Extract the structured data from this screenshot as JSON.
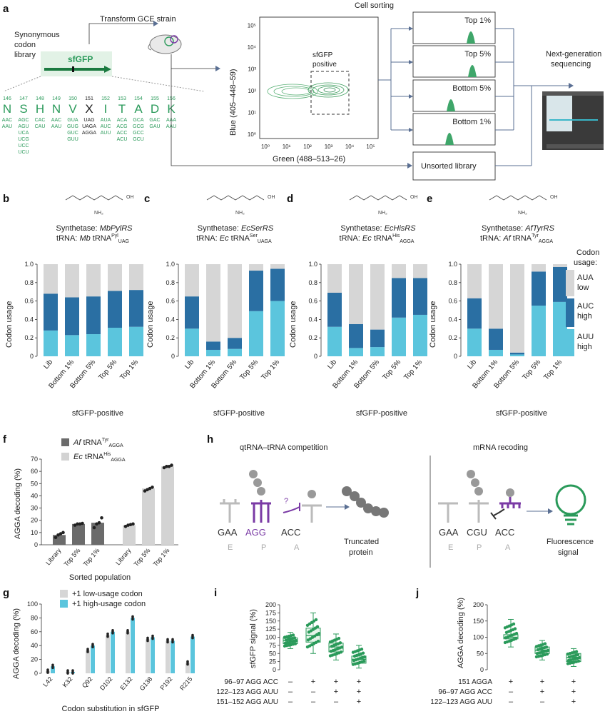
{
  "panel_a": {
    "label": "a",
    "transform": "Transform GCE strain",
    "cell_sorting": "Cell sorting",
    "library": [
      "Synonymous",
      "codon",
      "library"
    ],
    "gene": "sfGFP",
    "sfgfp_positive": [
      "sfGFP",
      "positive"
    ],
    "y_axis": "Blue (405–448–59)",
    "x_axis": "Green (488–513–26)",
    "x_ticks": [
      "10⁰",
      "10¹",
      "10²",
      "10³",
      "10⁴",
      "10⁵"
    ],
    "y_ticks": [
      "10⁰",
      "10¹",
      "10²",
      "10³",
      "10⁴",
      "10⁵"
    ],
    "gates": [
      "Top 1%",
      "Top 5%",
      "Bottom 5%",
      "Bottom 1%"
    ],
    "unsorted": "Unsorted library",
    "ngs": [
      "Next-generation",
      "sequencing"
    ],
    "codons": [
      {
        "pos": "146",
        "aa": "N",
        "c": [
          "AAC",
          "AAU"
        ]
      },
      {
        "pos": "147",
        "aa": "S",
        "c": [
          "AGC",
          "AGU",
          "UCA",
          "UCG",
          "UCC",
          "UCU"
        ]
      },
      {
        "pos": "148",
        "aa": "H",
        "c": [
          "CAC",
          "CAU"
        ]
      },
      {
        "pos": "149",
        "aa": "N",
        "c": [
          "AAC",
          "AAU"
        ]
      },
      {
        "pos": "150",
        "aa": "V",
        "c": [
          "GUA",
          "GUG",
          "GUC",
          "GUU"
        ]
      },
      {
        "pos": "151",
        "aa": "X",
        "c": [
          "UAG",
          "UAGA",
          "AGGA"
        ]
      },
      {
        "pos": "152",
        "aa": "I",
        "c": [
          "AUA",
          "AUC",
          "AUU"
        ]
      },
      {
        "pos": "153",
        "aa": "T",
        "c": [
          "ACA",
          "ACG",
          "ACC",
          "ACU"
        ]
      },
      {
        "pos": "154",
        "aa": "A",
        "c": [
          "GCA",
          "GCG",
          "GCC",
          "GCU"
        ]
      },
      {
        "pos": "155",
        "aa": "D",
        "c": [
          "GAC",
          "GAU"
        ]
      },
      {
        "pos": "156",
        "aa": "K",
        "c": [
          "AAA",
          "AAU"
        ]
      }
    ]
  },
  "stack_panels": [
    {
      "label": "b",
      "syn_prefix": "Synthetase: ",
      "syn": "MbPylRS",
      "trna_prefix": "tRNA: ",
      "trna_sp": "Mb",
      "trna_name": " tRNA",
      "sup": "Pyl",
      "sub": "UAG"
    },
    {
      "label": "c",
      "syn_prefix": "Synthetase: ",
      "syn": "EcSerRS",
      "trna_prefix": "tRNA: ",
      "trna_sp": "Ec",
      "trna_name": " tRNA",
      "sup": "Ser",
      "sub": "UAGA"
    },
    {
      "label": "d",
      "syn_prefix": "Synthetase: ",
      "syn": "EcHisRS",
      "trna_prefix": "tRNA: ",
      "trna_sp": "Ec",
      "trna_name": " tRNA",
      "sup": "His",
      "sub": "AGGA"
    },
    {
      "label": "e",
      "syn_prefix": "Synthetase: ",
      "syn": "AfTyrRS",
      "trna_prefix": "tRNA: ",
      "trna_sp": "Af",
      "trna_name": " tRNA",
      "sup": "Tyr",
      "sub": "AGGA"
    }
  ],
  "stack_common": {
    "ylabel": "Codon usage",
    "yticks": [
      "0",
      "0.2",
      "0.4",
      "0.6",
      "0.8",
      "1.0"
    ],
    "categories": [
      "Lib",
      "Bottom 1%",
      "Bottom 5%",
      "Top 5%",
      "Top 1%"
    ],
    "xlabel": "sfGFP-positive",
    "legend_title": "Codon usage",
    "legend": [
      [
        "AUA",
        "low"
      ],
      [
        "AUC",
        "high"
      ],
      [
        "AUU",
        "high"
      ]
    ]
  },
  "panel_f": {
    "label": "f",
    "ylabel": "AGGA decoding (%)",
    "yticks": [
      "0",
      "10",
      "20",
      "30",
      "40",
      "50",
      "60",
      "70"
    ],
    "xlabel": "Sorted population",
    "categories": [
      "Library",
      "Top 5%",
      "Top 1%"
    ],
    "legend_sp": [
      "Af",
      "Ec"
    ],
    "legend_name": [
      " tRNA",
      " tRNA"
    ],
    "legend_sup": [
      "Tyr",
      "His"
    ],
    "legend_sub": [
      "AGGA",
      "AGGA"
    ]
  },
  "panel_g": {
    "label": "g",
    "ylabel": "AGGA decoding (%)",
    "yticks": [
      "0",
      "20",
      "40",
      "60",
      "80",
      "100"
    ],
    "xlabel": "Codon substitution in sfGFP",
    "legend": [
      "+1 low-usage codon",
      "+1 high-usage codon"
    ]
  },
  "panel_h": {
    "label": "h",
    "left_title": "qtRNA–tRNA competition",
    "right_title": "mRNA recoding",
    "left_codons": [
      "GAA",
      "AGG",
      "ACC"
    ],
    "right_codons": [
      "GAA",
      "CGU",
      "ACC"
    ],
    "sites": [
      "E",
      "P",
      "A"
    ],
    "left_result": [
      "Truncated",
      "protein"
    ],
    "right_result": [
      "Fluorescence",
      "signal"
    ],
    "question": "?"
  },
  "panel_i": {
    "label": "i",
    "ylabel": "sfGFP signal (%)",
    "yticks": [
      "0",
      "25",
      "50",
      "75",
      "100",
      "125",
      "150",
      "175",
      "200"
    ],
    "rows": [
      {
        "name": "96–97 AGG ACC",
        "marks": [
          "–",
          "+",
          "+",
          "+"
        ]
      },
      {
        "name": "122–123 AGG AUU",
        "marks": [
          "–",
          "–",
          "+",
          "+"
        ]
      },
      {
        "name": "151–152 AGG AUU",
        "marks": [
          "–",
          "–",
          "–",
          "+"
        ]
      }
    ]
  },
  "panel_j": {
    "label": "j",
    "ylabel": "AGGA decoding (%)",
    "yticks": [
      "0",
      "50",
      "100",
      "150",
      "200"
    ],
    "rows": [
      {
        "name": "151 AGGA",
        "marks": [
          "+",
          "+",
          "+"
        ]
      },
      {
        "name": "96–97 AGG ACC",
        "marks": [
          "–",
          "+",
          "+"
        ]
      },
      {
        "name": "122–123 AGG AUU",
        "marks": [
          "–",
          "–",
          "+"
        ]
      }
    ]
  },
  "chart_data": [
    {
      "type": "bar",
      "id": "b",
      "stacked": true,
      "categories": [
        "Lib",
        "Bottom 1%",
        "Bottom 5%",
        "Top 5%",
        "Top 1%"
      ],
      "series": [
        {
          "name": "AUU high",
          "values": [
            0.28,
            0.23,
            0.24,
            0.31,
            0.32
          ]
        },
        {
          "name": "AUC high",
          "values": [
            0.4,
            0.41,
            0.41,
            0.4,
            0.4
          ]
        },
        {
          "name": "AUA low",
          "values": [
            0.32,
            0.36,
            0.35,
            0.29,
            0.28
          ]
        }
      ],
      "ylabel": "Codon usage",
      "xlabel": "sfGFP-positive",
      "ylim": [
        0,
        1.0
      ]
    },
    {
      "type": "bar",
      "id": "c",
      "stacked": true,
      "categories": [
        "Lib",
        "Bottom 1%",
        "Bottom 5%",
        "Top 5%",
        "Top 1%"
      ],
      "series": [
        {
          "name": "AUU high",
          "values": [
            0.3,
            0.07,
            0.08,
            0.49,
            0.6
          ]
        },
        {
          "name": "AUC high",
          "values": [
            0.35,
            0.09,
            0.12,
            0.44,
            0.35
          ]
        },
        {
          "name": "AUA low",
          "values": [
            0.35,
            0.84,
            0.8,
            0.07,
            0.05
          ]
        }
      ],
      "ylabel": "Codon usage",
      "xlabel": "sfGFP-positive",
      "ylim": [
        0,
        1.0
      ]
    },
    {
      "type": "bar",
      "id": "d",
      "stacked": true,
      "categories": [
        "Lib",
        "Bottom 1%",
        "Bottom 5%",
        "Top 5%",
        "Top 1%"
      ],
      "series": [
        {
          "name": "AUU high",
          "values": [
            0.32,
            0.09,
            0.1,
            0.42,
            0.45
          ]
        },
        {
          "name": "AUC high",
          "values": [
            0.37,
            0.26,
            0.19,
            0.43,
            0.4
          ]
        },
        {
          "name": "AUA low",
          "values": [
            0.31,
            0.65,
            0.71,
            0.15,
            0.15
          ]
        }
      ],
      "ylabel": "Codon usage",
      "xlabel": "sfGFP-positive",
      "ylim": [
        0,
        1.0
      ]
    },
    {
      "type": "bar",
      "id": "e",
      "stacked": true,
      "categories": [
        "Lib",
        "Bottom 1%",
        "Bottom 5%",
        "Top 5%",
        "Top 1%"
      ],
      "series": [
        {
          "name": "AUU high",
          "values": [
            0.3,
            0.07,
            0.02,
            0.55,
            0.59
          ]
        },
        {
          "name": "AUC high",
          "values": [
            0.33,
            0.23,
            0.02,
            0.37,
            0.38
          ]
        },
        {
          "name": "AUA low",
          "values": [
            0.37,
            0.7,
            0.96,
            0.08,
            0.03
          ]
        }
      ],
      "ylabel": "Codon usage",
      "xlabel": "sfGFP-positive",
      "ylim": [
        0,
        1.0
      ]
    },
    {
      "type": "bar",
      "id": "f",
      "groups": [
        {
          "series": "Af tRNATyr AGGA",
          "categories": [
            "Library",
            "Top 5%",
            "Top 1%"
          ],
          "values": [
            8,
            17,
            18
          ],
          "points": [
            [
              6,
              8,
              9,
              10
            ],
            [
              16,
              17,
              17,
              17.5
            ],
            [
              14,
              17,
              18,
              22
            ]
          ]
        },
        {
          "series": "Ec tRNAHis AGGA",
          "categories": [
            "Library",
            "Top 5%",
            "Top 1%"
          ],
          "values": [
            16,
            46,
            64
          ],
          "points": [
            [
              15,
              16,
              16.5,
              17
            ],
            [
              44,
              45,
              46,
              47
            ],
            [
              63,
              64,
              64,
              65
            ]
          ]
        }
      ],
      "ylabel": "AGGA decoding (%)",
      "xlabel": "Sorted population",
      "ylim": [
        0,
        70
      ]
    },
    {
      "type": "bar",
      "id": "g",
      "categories": [
        "L42",
        "K32",
        "Q92",
        "D102",
        "E132",
        "G138",
        "P192",
        "R215"
      ],
      "series": [
        {
          "name": "+1 low-usage codon",
          "values": [
            3,
            2,
            33,
            55,
            60,
            49,
            47,
            15
          ]
        },
        {
          "name": "+1 high-usage codon",
          "values": [
            10,
            2,
            40,
            60,
            80,
            52,
            47,
            53
          ]
        }
      ],
      "ylabel": "AGGA decoding (%)",
      "xlabel": "Codon substitution in sfGFP",
      "ylim": [
        0,
        100
      ]
    },
    {
      "type": "box",
      "id": "i",
      "groups": 4,
      "median": [
        90,
        105,
        70,
        32
      ],
      "q1": [
        80,
        85,
        55,
        20
      ],
      "q3": [
        98,
        128,
        82,
        42
      ],
      "min": [
        65,
        50,
        30,
        5
      ],
      "max": [
        115,
        175,
        110,
        75
      ],
      "ylabel": "sfGFP signal (%)",
      "ylim": [
        0,
        200
      ]
    },
    {
      "type": "box",
      "id": "j",
      "groups": 3,
      "median": [
        100,
        60,
        38
      ],
      "q1": [
        95,
        50,
        25
      ],
      "q3": [
        108,
        70,
        50
      ],
      "min": [
        70,
        30,
        10
      ],
      "max": [
        155,
        90,
        65
      ],
      "ylabel": "AGGA decoding (%)",
      "ylim": [
        0,
        200
      ]
    }
  ],
  "colors": {
    "green": "#2a9a5a",
    "purple": "#7a3aa5",
    "light_blue": "#5bc5dd",
    "dark_blue": "#2a6fa3",
    "bar_gray": "#d6d6d6",
    "dark_gray": "#6b6b6b",
    "light_gray": "#d3d3d3"
  }
}
